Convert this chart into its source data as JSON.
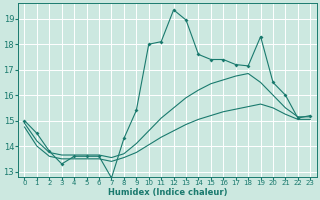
{
  "xlabel": "Humidex (Indice chaleur)",
  "xlim": [
    -0.5,
    23.5
  ],
  "ylim": [
    12.8,
    19.6
  ],
  "yticks": [
    13,
    14,
    15,
    16,
    17,
    18,
    19
  ],
  "xticks": [
    0,
    1,
    2,
    3,
    4,
    5,
    6,
    7,
    8,
    9,
    10,
    11,
    12,
    13,
    14,
    15,
    16,
    17,
    18,
    19,
    20,
    21,
    22,
    23
  ],
  "bg_color": "#cce8e0",
  "grid_color": "#ffffff",
  "line_color": "#1a7a6e",
  "line1_x": [
    0,
    1,
    2,
    3,
    4,
    5,
    6,
    7,
    8,
    9,
    10,
    11,
    12,
    13,
    14,
    15,
    16,
    17,
    18,
    19,
    20,
    21,
    22,
    23
  ],
  "line1_y": [
    15.0,
    14.5,
    13.8,
    13.3,
    13.6,
    13.6,
    13.6,
    12.75,
    14.3,
    15.4,
    18.0,
    18.1,
    19.35,
    18.95,
    17.6,
    17.4,
    17.4,
    17.2,
    17.15,
    18.3,
    16.5,
    16.0,
    15.1,
    15.2
  ],
  "line2_x": [
    0,
    1,
    2,
    3,
    4,
    5,
    6,
    7,
    8,
    9,
    10,
    11,
    12,
    13,
    14,
    15,
    16,
    17,
    18,
    19,
    20,
    21,
    22,
    23
  ],
  "line2_y": [
    14.9,
    14.2,
    13.75,
    13.65,
    13.65,
    13.65,
    13.65,
    13.55,
    13.7,
    14.1,
    14.6,
    15.1,
    15.5,
    15.9,
    16.2,
    16.45,
    16.6,
    16.75,
    16.85,
    16.5,
    16.0,
    15.5,
    15.15,
    15.15
  ],
  "line3_x": [
    0,
    1,
    2,
    3,
    4,
    5,
    6,
    7,
    8,
    9,
    10,
    11,
    12,
    13,
    14,
    15,
    16,
    17,
    18,
    19,
    20,
    21,
    22,
    23
  ],
  "line3_y": [
    14.75,
    14.0,
    13.6,
    13.5,
    13.5,
    13.5,
    13.5,
    13.4,
    13.55,
    13.75,
    14.05,
    14.35,
    14.6,
    14.85,
    15.05,
    15.2,
    15.35,
    15.45,
    15.55,
    15.65,
    15.5,
    15.25,
    15.05,
    15.05
  ]
}
